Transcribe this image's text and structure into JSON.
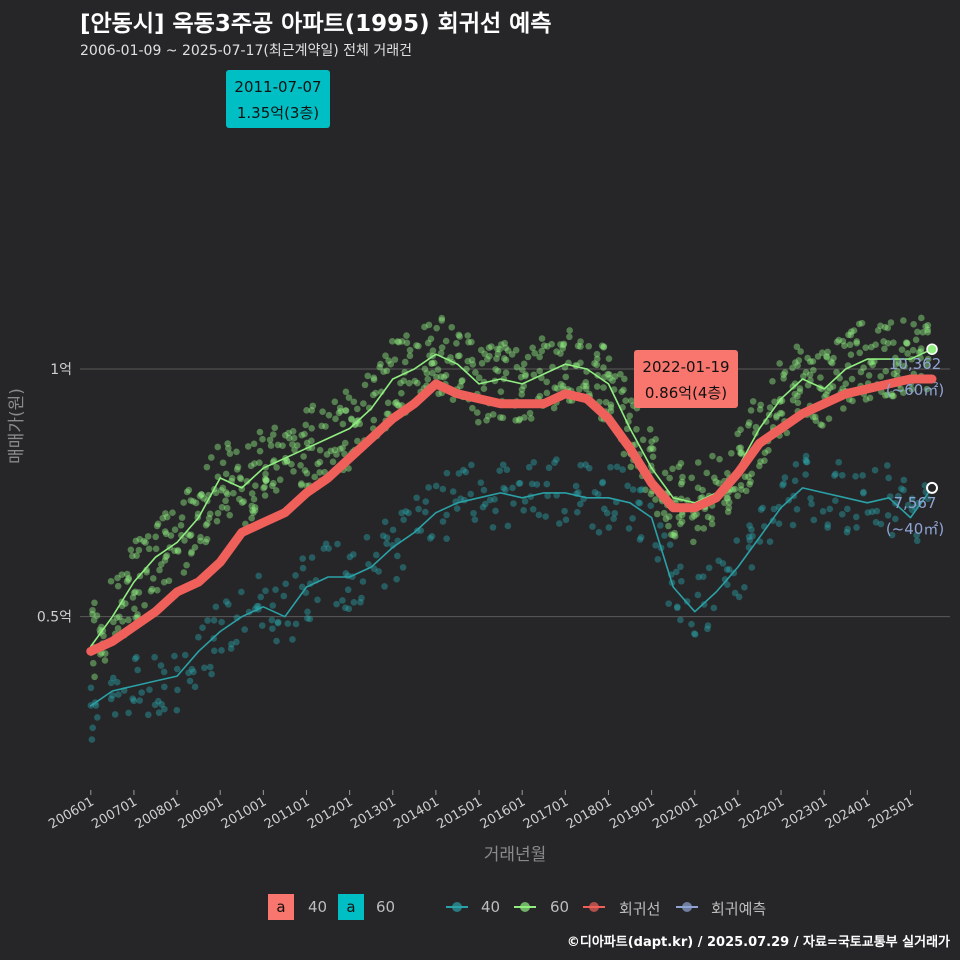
{
  "title": "[안동시] 옥동3주공 아파트(1995) 회귀선 예측",
  "subtitle": "2006-01-09 ~ 2025-07-17(최근계약일) 전체 거래건",
  "colors": {
    "background": "#262628",
    "s40": "#2aa1a6",
    "s60": "#90ee80",
    "regression": "#f0605a",
    "forecast": "#8fa3d3",
    "grid": "#5a5a5a",
    "label_teal": "#00bfc4",
    "label_red": "#f8766d"
  },
  "chart_data": {
    "type": "line",
    "ylabel": "매매가(원)",
    "xlabel": "거래년월",
    "xlim": [
      "2005-10",
      "2025-12"
    ],
    "ylim": [
      0.15,
      1.62
    ],
    "ytick_values": [
      0.5,
      1.0
    ],
    "ytick_labels": [
      "0.5억",
      "1억"
    ],
    "xtick_labels": [
      "200601",
      "200701",
      "200801",
      "200901",
      "201001",
      "201101",
      "201201",
      "201301",
      "201401",
      "201501",
      "201601",
      "201701",
      "201801",
      "201901",
      "202001",
      "202101",
      "202201",
      "202301",
      "202401",
      "202501"
    ],
    "legend": {
      "fill_items": [
        {
          "key": "a",
          "label": "40",
          "color": "#f8766d"
        },
        {
          "key": "a",
          "label": "60",
          "color": "#00bfc4"
        }
      ],
      "line_items": [
        {
          "label": "40",
          "color": "#2aa1a6"
        },
        {
          "label": "60",
          "color": "#90ee80"
        },
        {
          "label": "회귀선",
          "color": "#f0605a"
        },
        {
          "label": "회귀예측",
          "color": "#8fa3d3"
        }
      ]
    },
    "series": [
      {
        "name": "60",
        "x": [
          "2006-01",
          "2006-07",
          "2007-01",
          "2007-07",
          "2008-01",
          "2008-07",
          "2009-01",
          "2009-07",
          "2010-01",
          "2010-07",
          "2011-01",
          "2011-07",
          "2012-01",
          "2012-07",
          "2013-01",
          "2013-07",
          "2014-01",
          "2014-07",
          "2015-01",
          "2015-07",
          "2016-01",
          "2016-07",
          "2017-01",
          "2017-07",
          "2018-01",
          "2018-07",
          "2019-01",
          "2019-07",
          "2020-01",
          "2020-07",
          "2021-01",
          "2021-07",
          "2022-01",
          "2022-07",
          "2023-01",
          "2023-07",
          "2024-01",
          "2024-07",
          "2025-01",
          "2025-07"
        ],
        "values": [
          0.44,
          0.5,
          0.57,
          0.62,
          0.65,
          0.7,
          0.78,
          0.76,
          0.8,
          0.82,
          0.84,
          0.86,
          0.88,
          0.92,
          0.98,
          1.0,
          1.03,
          1.01,
          0.97,
          0.98,
          0.97,
          0.99,
          1.01,
          1.0,
          0.97,
          0.88,
          0.8,
          0.74,
          0.73,
          0.75,
          0.8,
          0.88,
          0.94,
          0.98,
          0.96,
          1.0,
          1.02,
          1.02,
          1.02,
          1.04
        ]
      },
      {
        "name": "40",
        "x": [
          "2006-01",
          "2006-07",
          "2007-01",
          "2007-07",
          "2008-01",
          "2008-07",
          "2009-01",
          "2009-07",
          "2010-01",
          "2010-07",
          "2011-01",
          "2011-07",
          "2012-01",
          "2012-07",
          "2013-01",
          "2013-07",
          "2014-01",
          "2014-07",
          "2015-01",
          "2015-07",
          "2016-01",
          "2016-07",
          "2017-01",
          "2017-07",
          "2018-01",
          "2018-07",
          "2019-01",
          "2019-07",
          "2020-01",
          "2020-07",
          "2021-01",
          "2021-07",
          "2022-01",
          "2022-07",
          "2023-01",
          "2023-07",
          "2024-01",
          "2024-07",
          "2025-01",
          "2025-07"
        ],
        "values": [
          0.32,
          0.35,
          0.36,
          0.37,
          0.38,
          0.43,
          0.47,
          0.5,
          0.52,
          0.5,
          0.56,
          0.58,
          0.58,
          0.6,
          0.64,
          0.67,
          0.71,
          0.73,
          0.74,
          0.75,
          0.74,
          0.75,
          0.75,
          0.74,
          0.74,
          0.73,
          0.7,
          0.56,
          0.51,
          0.55,
          0.6,
          0.66,
          0.72,
          0.76,
          0.75,
          0.74,
          0.73,
          0.74,
          0.7,
          0.76
        ]
      },
      {
        "name": "회귀선",
        "x": [
          "2006-01",
          "2006-07",
          "2007-01",
          "2007-07",
          "2008-01",
          "2008-07",
          "2009-01",
          "2009-07",
          "2010-01",
          "2010-07",
          "2011-01",
          "2011-07",
          "2012-01",
          "2012-07",
          "2013-01",
          "2013-07",
          "2014-01",
          "2014-07",
          "2015-01",
          "2015-07",
          "2016-01",
          "2016-07",
          "2017-01",
          "2017-07",
          "2018-01",
          "2018-07",
          "2019-01",
          "2019-07",
          "2020-01",
          "2020-07",
          "2021-01",
          "2021-07",
          "2022-01",
          "2022-07",
          "2023-01",
          "2023-07",
          "2024-01",
          "2024-07",
          "2025-01",
          "2025-07"
        ],
        "values": [
          0.43,
          0.45,
          0.48,
          0.51,
          0.55,
          0.57,
          0.61,
          0.67,
          0.69,
          0.71,
          0.75,
          0.78,
          0.82,
          0.86,
          0.9,
          0.93,
          0.97,
          0.95,
          0.94,
          0.93,
          0.93,
          0.93,
          0.95,
          0.94,
          0.9,
          0.84,
          0.77,
          0.72,
          0.72,
          0.74,
          0.79,
          0.85,
          0.88,
          0.91,
          0.93,
          0.95,
          0.96,
          0.97,
          0.98,
          0.98
        ]
      }
    ],
    "annotations": [
      {
        "date": "2011-07-07",
        "value": "1.35억(3층)",
        "color": "#00bfc4"
      },
      {
        "date": "2022-01-19",
        "value": "0.86억(4층)",
        "color": "#f8766d"
      }
    ],
    "end_labels": [
      {
        "count": "10,362",
        "area": "(~60㎡)",
        "y": 1.04
      },
      {
        "count": "7,567",
        "area": "(~40㎡)",
        "y": 0.76
      }
    ]
  },
  "source": "©디아파트(dapt.kr) / 2025.07.29 / 자료=국토교통부 실거래가"
}
